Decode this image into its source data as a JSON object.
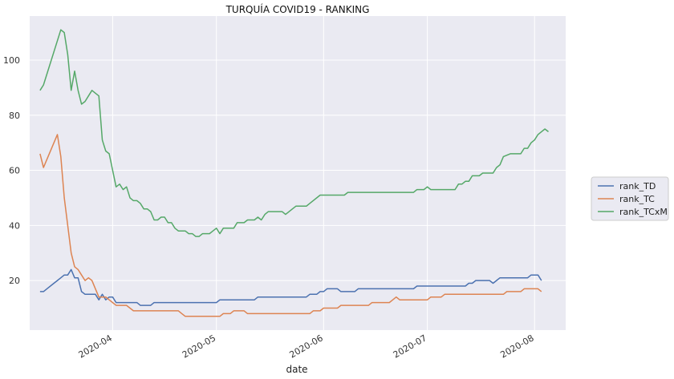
{
  "chart_data": {
    "type": "line",
    "title": "TURQUÍA COVID19 - RANKING",
    "xlabel": "date",
    "ylabel": "",
    "xlim": [
      "2020-03-08",
      "2020-08-10"
    ],
    "ylim": [
      2,
      116
    ],
    "yticks": [
      20,
      40,
      60,
      80,
      100
    ],
    "xticks": [
      {
        "date": "2020-04-01",
        "label": "2020-04"
      },
      {
        "date": "2020-05-01",
        "label": "2020-05"
      },
      {
        "date": "2020-06-01",
        "label": "2020-06"
      },
      {
        "date": "2020-07-01",
        "label": "2020-07"
      },
      {
        "date": "2020-08-01",
        "label": "2020-08"
      }
    ],
    "grid": true,
    "legend_position": "right",
    "series": [
      {
        "name": "rank_TD",
        "color": "#4c72b0",
        "points": [
          [
            "2020-03-11",
            16
          ],
          [
            "2020-03-12",
            16
          ],
          [
            "2020-03-13",
            17
          ],
          [
            "2020-03-15",
            19
          ],
          [
            "2020-03-16",
            20
          ],
          [
            "2020-03-17",
            21
          ],
          [
            "2020-03-18",
            22
          ],
          [
            "2020-03-19",
            22
          ],
          [
            "2020-03-20",
            24
          ],
          [
            "2020-03-21",
            21
          ],
          [
            "2020-03-22",
            21
          ],
          [
            "2020-03-23",
            16
          ],
          [
            "2020-03-24",
            15
          ],
          [
            "2020-03-26",
            15
          ],
          [
            "2020-03-27",
            15
          ],
          [
            "2020-03-28",
            13
          ],
          [
            "2020-03-29",
            15
          ],
          [
            "2020-03-30",
            13
          ],
          [
            "2020-03-31",
            14
          ],
          [
            "2020-04-01",
            14
          ],
          [
            "2020-04-02",
            12
          ],
          [
            "2020-04-05",
            12
          ],
          [
            "2020-04-08",
            12
          ],
          [
            "2020-04-09",
            11
          ],
          [
            "2020-04-12",
            11
          ],
          [
            "2020-04-13",
            12
          ],
          [
            "2020-04-20",
            12
          ],
          [
            "2020-04-30",
            12
          ],
          [
            "2020-05-01",
            12
          ],
          [
            "2020-05-02",
            13
          ],
          [
            "2020-05-10",
            13
          ],
          [
            "2020-05-12",
            13
          ],
          [
            "2020-05-13",
            14
          ],
          [
            "2020-05-20",
            14
          ],
          [
            "2020-05-27",
            14
          ],
          [
            "2020-05-28",
            15
          ],
          [
            "2020-05-30",
            15
          ],
          [
            "2020-05-31",
            16
          ],
          [
            "2020-06-01",
            16
          ],
          [
            "2020-06-02",
            17
          ],
          [
            "2020-06-05",
            17
          ],
          [
            "2020-06-06",
            16
          ],
          [
            "2020-06-10",
            16
          ],
          [
            "2020-06-11",
            17
          ],
          [
            "2020-06-20",
            17
          ],
          [
            "2020-06-27",
            17
          ],
          [
            "2020-06-28",
            18
          ],
          [
            "2020-07-10",
            18
          ],
          [
            "2020-07-12",
            18
          ],
          [
            "2020-07-13",
            19
          ],
          [
            "2020-07-14",
            19
          ],
          [
            "2020-07-15",
            20
          ],
          [
            "2020-07-19",
            20
          ],
          [
            "2020-07-20",
            19
          ],
          [
            "2020-07-21",
            20
          ],
          [
            "2020-07-22",
            21
          ],
          [
            "2020-07-30",
            21
          ],
          [
            "2020-07-31",
            22
          ],
          [
            "2020-08-02",
            22
          ],
          [
            "2020-08-03",
            20
          ]
        ]
      },
      {
        "name": "rank_TC",
        "color": "#dd8452",
        "points": [
          [
            "2020-03-11",
            66
          ],
          [
            "2020-03-12",
            61
          ],
          [
            "2020-03-16",
            73
          ],
          [
            "2020-03-17",
            65
          ],
          [
            "2020-03-18",
            50
          ],
          [
            "2020-03-19",
            40
          ],
          [
            "2020-03-20",
            30
          ],
          [
            "2020-03-21",
            25
          ],
          [
            "2020-03-22",
            24
          ],
          [
            "2020-03-23",
            22
          ],
          [
            "2020-03-24",
            20
          ],
          [
            "2020-03-25",
            21
          ],
          [
            "2020-03-26",
            20
          ],
          [
            "2020-03-27",
            17
          ],
          [
            "2020-03-28",
            14
          ],
          [
            "2020-03-29",
            14
          ],
          [
            "2020-03-30",
            14
          ],
          [
            "2020-03-31",
            13
          ],
          [
            "2020-04-01",
            12
          ],
          [
            "2020-04-02",
            11
          ],
          [
            "2020-04-04",
            11
          ],
          [
            "2020-04-05",
            11
          ],
          [
            "2020-04-06",
            10
          ],
          [
            "2020-04-07",
            9
          ],
          [
            "2020-04-10",
            9
          ],
          [
            "2020-04-15",
            9
          ],
          [
            "2020-04-20",
            9
          ],
          [
            "2020-04-21",
            8
          ],
          [
            "2020-04-22",
            7
          ],
          [
            "2020-04-30",
            7
          ],
          [
            "2020-05-02",
            7
          ],
          [
            "2020-05-03",
            8
          ],
          [
            "2020-05-05",
            8
          ],
          [
            "2020-05-06",
            9
          ],
          [
            "2020-05-09",
            9
          ],
          [
            "2020-05-10",
            8
          ],
          [
            "2020-05-20",
            8
          ],
          [
            "2020-05-28",
            8
          ],
          [
            "2020-05-29",
            9
          ],
          [
            "2020-05-31",
            9
          ],
          [
            "2020-06-01",
            10
          ],
          [
            "2020-06-05",
            10
          ],
          [
            "2020-06-06",
            11
          ],
          [
            "2020-06-14",
            11
          ],
          [
            "2020-06-15",
            12
          ],
          [
            "2020-06-20",
            12
          ],
          [
            "2020-06-21",
            13
          ],
          [
            "2020-06-22",
            14
          ],
          [
            "2020-06-23",
            13
          ],
          [
            "2020-07-01",
            13
          ],
          [
            "2020-07-02",
            14
          ],
          [
            "2020-07-05",
            14
          ],
          [
            "2020-07-06",
            15
          ],
          [
            "2020-07-23",
            15
          ],
          [
            "2020-07-24",
            16
          ],
          [
            "2020-07-28",
            16
          ],
          [
            "2020-07-29",
            17
          ],
          [
            "2020-08-01",
            17
          ],
          [
            "2020-08-02",
            17
          ],
          [
            "2020-08-03",
            16
          ]
        ]
      },
      {
        "name": "rank_TCxM",
        "color": "#55a868",
        "points": [
          [
            "2020-03-11",
            89
          ],
          [
            "2020-03-12",
            91
          ],
          [
            "2020-03-17",
            111
          ],
          [
            "2020-03-18",
            110
          ],
          [
            "2020-03-19",
            102
          ],
          [
            "2020-03-20",
            89
          ],
          [
            "2020-03-21",
            96
          ],
          [
            "2020-03-22",
            89
          ],
          [
            "2020-03-23",
            84
          ],
          [
            "2020-03-24",
            85
          ],
          [
            "2020-03-25",
            87
          ],
          [
            "2020-03-26",
            89
          ],
          [
            "2020-03-27",
            88
          ],
          [
            "2020-03-28",
            87
          ],
          [
            "2020-03-29",
            71
          ],
          [
            "2020-03-30",
            67
          ],
          [
            "2020-03-31",
            66
          ],
          [
            "2020-04-01",
            60
          ],
          [
            "2020-04-02",
            54
          ],
          [
            "2020-04-03",
            55
          ],
          [
            "2020-04-04",
            53
          ],
          [
            "2020-04-05",
            54
          ],
          [
            "2020-04-06",
            50
          ],
          [
            "2020-04-07",
            49
          ],
          [
            "2020-04-08",
            49
          ],
          [
            "2020-04-09",
            48
          ],
          [
            "2020-04-10",
            46
          ],
          [
            "2020-04-11",
            46
          ],
          [
            "2020-04-12",
            45
          ],
          [
            "2020-04-13",
            42
          ],
          [
            "2020-04-14",
            42
          ],
          [
            "2020-04-15",
            43
          ],
          [
            "2020-04-16",
            43
          ],
          [
            "2020-04-17",
            41
          ],
          [
            "2020-04-18",
            41
          ],
          [
            "2020-04-19",
            39
          ],
          [
            "2020-04-20",
            38
          ],
          [
            "2020-04-22",
            38
          ],
          [
            "2020-04-23",
            37
          ],
          [
            "2020-04-24",
            37
          ],
          [
            "2020-04-25",
            36
          ],
          [
            "2020-04-26",
            36
          ],
          [
            "2020-04-27",
            37
          ],
          [
            "2020-04-29",
            37
          ],
          [
            "2020-04-30",
            38
          ],
          [
            "2020-05-01",
            39
          ],
          [
            "2020-05-02",
            37
          ],
          [
            "2020-05-03",
            39
          ],
          [
            "2020-05-06",
            39
          ],
          [
            "2020-05-07",
            41
          ],
          [
            "2020-05-09",
            41
          ],
          [
            "2020-05-10",
            42
          ],
          [
            "2020-05-12",
            42
          ],
          [
            "2020-05-13",
            43
          ],
          [
            "2020-05-14",
            42
          ],
          [
            "2020-05-15",
            44
          ],
          [
            "2020-05-16",
            45
          ],
          [
            "2020-05-20",
            45
          ],
          [
            "2020-05-21",
            44
          ],
          [
            "2020-05-23",
            46
          ],
          [
            "2020-05-24",
            47
          ],
          [
            "2020-05-27",
            47
          ],
          [
            "2020-05-28",
            48
          ],
          [
            "2020-05-31",
            51
          ],
          [
            "2020-06-07",
            51
          ],
          [
            "2020-06-08",
            52
          ],
          [
            "2020-06-20",
            52
          ],
          [
            "2020-06-27",
            52
          ],
          [
            "2020-06-28",
            53
          ],
          [
            "2020-06-30",
            53
          ],
          [
            "2020-07-01",
            54
          ],
          [
            "2020-07-02",
            53
          ],
          [
            "2020-07-05",
            53
          ],
          [
            "2020-07-09",
            53
          ],
          [
            "2020-07-10",
            55
          ],
          [
            "2020-07-11",
            55
          ],
          [
            "2020-07-12",
            56
          ],
          [
            "2020-07-13",
            56
          ],
          [
            "2020-07-14",
            58
          ],
          [
            "2020-07-16",
            58
          ],
          [
            "2020-07-17",
            59
          ],
          [
            "2020-07-20",
            59
          ],
          [
            "2020-07-21",
            61
          ],
          [
            "2020-07-22",
            62
          ],
          [
            "2020-07-23",
            65
          ],
          [
            "2020-07-25",
            66
          ],
          [
            "2020-07-28",
            66
          ],
          [
            "2020-07-29",
            68
          ],
          [
            "2020-07-30",
            68
          ],
          [
            "2020-07-31",
            70
          ],
          [
            "2020-08-01",
            71
          ],
          [
            "2020-08-02",
            73
          ],
          [
            "2020-08-03",
            74
          ],
          [
            "2020-08-04",
            75
          ],
          [
            "2020-08-05",
            74
          ]
        ]
      }
    ]
  }
}
